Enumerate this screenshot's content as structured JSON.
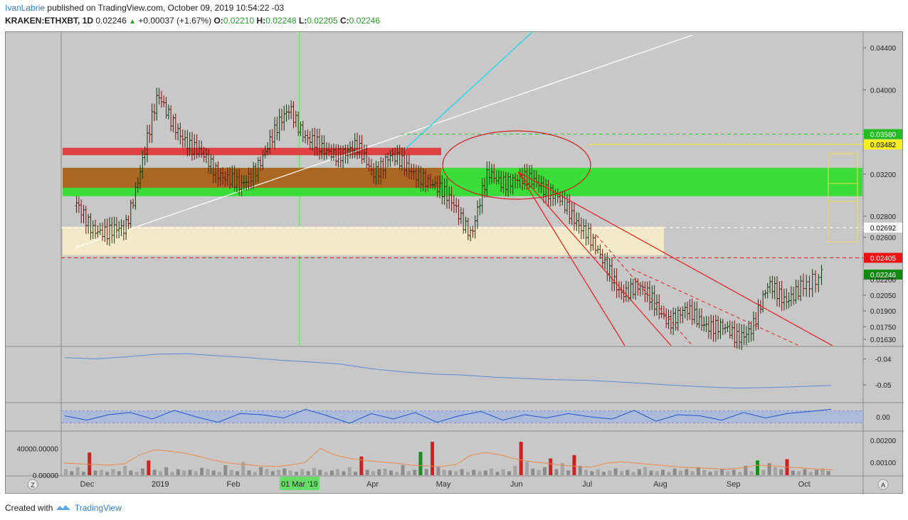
{
  "header": {
    "author": "IvanLabrie",
    "published_text": "published on TradingView.com, October 09, 2019 10:54:22 -03",
    "symbol": "KRAKEN:ETHXBT, 1D",
    "last": "0.02246",
    "change": "+0.00037 (+1.67%)",
    "o_label": "O:",
    "o_value": "0.02210",
    "h_label": "H:",
    "h_value": "0.02248",
    "l_label": "L:",
    "l_value": "0.02205",
    "c_label": "C:",
    "c_value": "0.02246"
  },
  "footer": {
    "created_with": "Created with",
    "brand": "TradingView"
  },
  "colors": {
    "panel_bg": "#c8c8c8",
    "up": "#1f8a1f",
    "down": "#cc2222",
    "red_zone": "#e03a3a",
    "green_zone": "#33dd33",
    "brown_zone": "#b85a20",
    "cream_zone": "#f5ecc8",
    "trend_red": "#e82020",
    "cyan_line": "#2ed6f0",
    "yellow": "#e9e14a",
    "blue_line": "#3a7ae8"
  },
  "chart_data": [
    {
      "type": "candlestick",
      "pane": "price",
      "y_ticks": [
        "0.04400",
        "0.04000",
        "0.03580",
        "0.03482",
        "0.03200",
        "0.02800",
        "0.02692",
        "0.02600",
        "0.02405",
        "0.02246",
        "0.02200",
        "0.02050",
        "0.01900",
        "0.01750",
        "0.01630"
      ],
      "y_range": [
        0.0157,
        0.0455
      ],
      "price_labels": [
        {
          "text": "0.03580",
          "value": 0.0358,
          "bg": "#22bb22",
          "fg": "#ffffff"
        },
        {
          "text": "0.03482",
          "value": 0.03482,
          "bg": "#f5ee20",
          "fg": "#000000"
        },
        {
          "text": "0.02692",
          "value": 0.02692,
          "bg": "#ffffff",
          "fg": "#000000"
        },
        {
          "text": "0.02405",
          "value": 0.02405,
          "bg": "#ee1111",
          "fg": "#ffffff"
        },
        {
          "text": "0.02246",
          "value": 0.02246,
          "bg": "#128a12",
          "fg": "#ffffff"
        }
      ],
      "x_labels": [
        "Dec",
        "2019",
        "Feb",
        "01 Mar '19",
        "Apr",
        "May",
        "Jun",
        "Jul",
        "Aug",
        "Sep",
        "Oct"
      ],
      "highlighted_x_label": "01 Mar '19",
      "close_path": [
        [
          "2018-11-26",
          0.029
        ],
        [
          "2018-12-03",
          0.0272
        ],
        [
          "2018-12-10",
          0.0262
        ],
        [
          "2018-12-17",
          0.0268
        ],
        [
          "2018-12-24",
          0.033
        ],
        [
          "2018-12-31",
          0.0392
        ],
        [
          "2019-01-07",
          0.037
        ],
        [
          "2019-01-14",
          0.0342
        ],
        [
          "2019-01-21",
          0.0335
        ],
        [
          "2019-01-28",
          0.0318
        ],
        [
          "2019-02-04",
          0.0305
        ],
        [
          "2019-02-11",
          0.033
        ],
        [
          "2019-02-18",
          0.0355
        ],
        [
          "2019-02-25",
          0.0384
        ],
        [
          "2019-03-04",
          0.0355
        ],
        [
          "2019-03-11",
          0.034
        ],
        [
          "2019-03-18",
          0.0342
        ],
        [
          "2019-03-25",
          0.0344
        ],
        [
          "2019-04-01",
          0.0322
        ],
        [
          "2019-04-08",
          0.0338
        ],
        [
          "2019-04-15",
          0.0325
        ],
        [
          "2019-04-22",
          0.032
        ],
        [
          "2019-04-29",
          0.0303
        ],
        [
          "2019-05-06",
          0.0292
        ],
        [
          "2019-05-13",
          0.0262
        ],
        [
          "2019-05-20",
          0.032
        ],
        [
          "2019-05-27",
          0.0315
        ],
        [
          "2019-06-03",
          0.0312
        ],
        [
          "2019-06-10",
          0.0315
        ],
        [
          "2019-06-17",
          0.03
        ],
        [
          "2019-06-24",
          0.028
        ],
        [
          "2019-07-01",
          0.0268
        ],
        [
          "2019-07-08",
          0.0232
        ],
        [
          "2019-07-15",
          0.021
        ],
        [
          "2019-07-22",
          0.0213
        ],
        [
          "2019-07-29",
          0.0198
        ],
        [
          "2019-08-05",
          0.0182
        ],
        [
          "2019-08-12",
          0.0188
        ],
        [
          "2019-08-19",
          0.0181
        ],
        [
          "2019-08-26",
          0.0174
        ],
        [
          "2019-09-02",
          0.0164
        ],
        [
          "2019-09-09",
          0.0177
        ],
        [
          "2019-09-16",
          0.0212
        ],
        [
          "2019-09-23",
          0.0203
        ],
        [
          "2019-09-30",
          0.0212
        ],
        [
          "2019-10-09",
          0.02246
        ]
      ],
      "horizontal_levels": [
        {
          "value": 0.0358,
          "style": "dashed",
          "color": "#22cc22"
        },
        {
          "value": 0.03482,
          "style": "solid",
          "color": "#f5ee20"
        },
        {
          "value": 0.02692,
          "style": "dashed",
          "color": "#ffffff"
        },
        {
          "value": 0.02405,
          "style": "dashed",
          "color": "#ee1111"
        }
      ],
      "zones": [
        {
          "name": "red",
          "from": 0.0338,
          "to": 0.0345
        },
        {
          "name": "brown",
          "from": 0.0307,
          "to": 0.0326
        },
        {
          "name": "green",
          "from": 0.0299,
          "to": 0.0326
        },
        {
          "name": "cream",
          "from": 0.0243,
          "to": 0.027
        }
      ]
    },
    {
      "type": "line",
      "pane": "indicator_1",
      "y_ticks": [
        "-0.04",
        "-0.05"
      ],
      "y_range": [
        -0.0565,
        -0.0355
      ],
      "values": [
        -0.0395,
        -0.04,
        -0.0392,
        -0.0382,
        -0.038,
        -0.0388,
        -0.0395,
        -0.0405,
        -0.0412,
        -0.042,
        -0.0438,
        -0.045,
        -0.0458,
        -0.0462,
        -0.047,
        -0.0475,
        -0.048,
        -0.0482,
        -0.0488,
        -0.0495,
        -0.0502,
        -0.0508,
        -0.0512,
        -0.051,
        -0.0506,
        -0.0502
      ]
    },
    {
      "type": "line",
      "pane": "indicator_2",
      "y_ticks": [
        "0.00"
      ],
      "y_range": [
        -1,
        1
      ],
      "values": [
        0.1,
        -0.3,
        0.2,
        0.4,
        -0.2,
        0.6,
        0.0,
        -0.5,
        0.3,
        0.2,
        -0.1,
        0.7,
        0.1,
        -0.6,
        0.3,
        -0.2,
        0.4,
        -0.5,
        0.1,
        0.5,
        -0.3,
        0.2,
        -0.1,
        0.3,
        0.0,
        -0.2,
        0.6,
        -0.4,
        0.2,
        0.1,
        -0.3,
        0.4,
        -0.1,
        0.3,
        0.5,
        0.7
      ]
    },
    {
      "type": "bar",
      "pane": "volume",
      "y_ticks_left": [
        "40000.00000",
        "0.00000"
      ],
      "y_ticks_right": [
        "0.00200",
        "0.00100"
      ],
      "y_range": [
        0,
        65000
      ],
      "values": [
        9000,
        6000,
        12000,
        5000,
        34000,
        7000,
        8000,
        5000,
        9000,
        6000,
        14000,
        7000,
        5000,
        10000,
        22000,
        8000,
        6000,
        12000,
        5000,
        9000,
        7000,
        8000,
        6000,
        11000,
        9000,
        7000,
        5000,
        15000,
        8000,
        6000,
        20000,
        7000,
        5000,
        12000,
        9000,
        6000,
        8000,
        10000,
        7000,
        5000,
        9000,
        6000,
        11000,
        8000,
        5000,
        7000,
        9000,
        6000,
        12000,
        5000,
        28000,
        8000,
        6000,
        9000,
        10000,
        7000,
        5000,
        15000,
        6000,
        8000,
        35000,
        9000,
        50000,
        12000,
        8000,
        7000,
        6000,
        9000,
        5000,
        8000,
        6000,
        7000,
        10000,
        5000,
        9000,
        6000,
        14000,
        50000,
        20000,
        10000,
        8000,
        12000,
        25000,
        9000,
        18000,
        7000,
        30000,
        14000,
        8000,
        6000,
        9000,
        5000,
        7000,
        10000,
        6000,
        8000,
        5000,
        9000,
        12000,
        7000,
        6000,
        8000,
        5000,
        10000,
        7000,
        9000,
        6000,
        12000,
        8000,
        5000,
        7000,
        9000,
        6000,
        8000,
        5000,
        14000,
        6000,
        22000,
        8000,
        18000,
        12000,
        9000,
        24000,
        7000,
        6000,
        9000,
        5000,
        8000,
        10000,
        6000
      ],
      "moving_average": [
        18000,
        17000,
        16000,
        15000,
        17000,
        30000,
        38000,
        36000,
        33000,
        28000,
        22000,
        18000,
        16000,
        14000,
        13000,
        15000,
        19000,
        40000,
        30000,
        25000,
        22000,
        20000,
        18000,
        15000,
        14000,
        13000,
        16000,
        30000,
        34000,
        30000,
        24000,
        20000,
        18000,
        15000,
        13000,
        12000,
        18000,
        20000,
        18000,
        16000,
        14000,
        12000,
        11000,
        10000,
        9000,
        11000,
        15000,
        14000,
        12000,
        11000,
        9000,
        8000
      ]
    }
  ]
}
